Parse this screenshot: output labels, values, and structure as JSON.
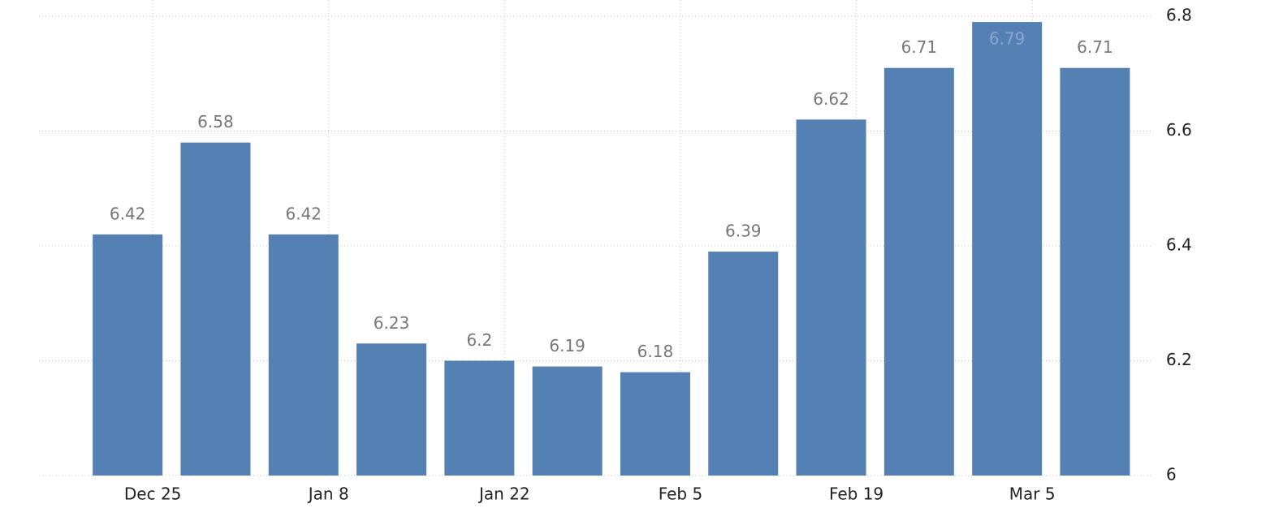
{
  "chart_data": {
    "type": "bar",
    "categories": [
      "Dec 25",
      null,
      "Jan 8",
      null,
      "Jan 22",
      null,
      "Feb 5",
      null,
      "Feb 19",
      null,
      "Mar 5",
      null
    ],
    "values": [
      6.42,
      6.58,
      6.42,
      6.23,
      6.2,
      6.19,
      6.18,
      6.39,
      6.62,
      6.71,
      6.79,
      6.71
    ],
    "color": "#5580b4",
    "ylim": [
      6,
      6.8
    ],
    "yticks": [
      6,
      6.2,
      6.4,
      6.6,
      6.8
    ],
    "grid": true
  }
}
